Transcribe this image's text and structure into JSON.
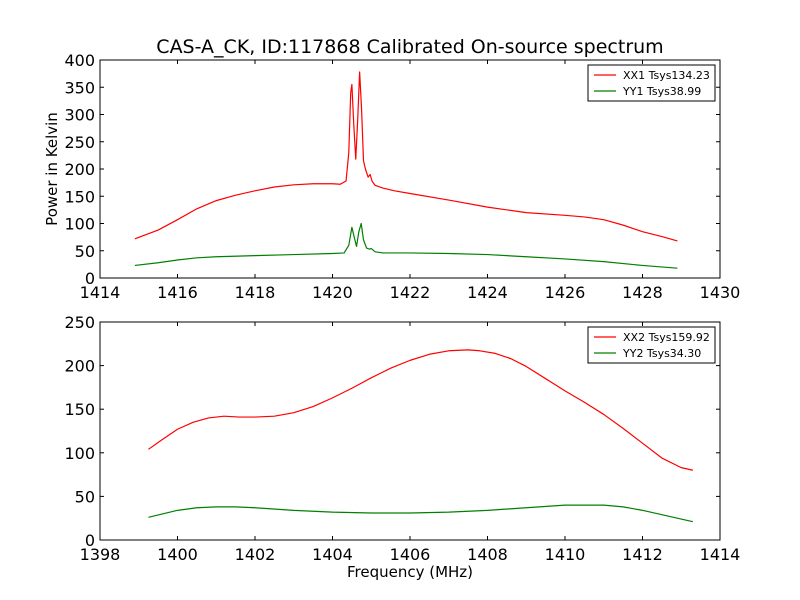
{
  "title": "CAS-A_CK, ID:117868 Calibrated On-source spectrum",
  "chart_data": [
    {
      "type": "line",
      "title": "CAS-A_CK, ID:117868 Calibrated On-source spectrum",
      "xlabel": "",
      "ylabel": "Power in Kelvin",
      "xlim": [
        1414,
        1430
      ],
      "ylim": [
        0,
        400
      ],
      "xticks": [
        1414,
        1416,
        1418,
        1420,
        1422,
        1424,
        1426,
        1428,
        1430
      ],
      "yticks": [
        0,
        50,
        100,
        150,
        200,
        250,
        300,
        350,
        400
      ],
      "grid": false,
      "legend_position": "top-right",
      "series": [
        {
          "name": "XX1 Tsys134.23",
          "color": "#ff0000",
          "x": [
            1414.9,
            1415.5,
            1416.0,
            1416.5,
            1417.0,
            1417.5,
            1418.0,
            1418.5,
            1419.0,
            1419.5,
            1420.0,
            1420.2,
            1420.35,
            1420.42,
            1420.47,
            1420.5,
            1420.55,
            1420.6,
            1420.65,
            1420.7,
            1420.75,
            1420.8,
            1420.85,
            1420.92,
            1420.97,
            1421.02,
            1421.1,
            1421.3,
            1421.6,
            1422.0,
            1423.0,
            1424.0,
            1425.0,
            1426.0,
            1426.5,
            1427.0,
            1427.5,
            1428.0,
            1428.5,
            1428.9
          ],
          "y": [
            72,
            88,
            107,
            127,
            142,
            152,
            160,
            167,
            171,
            173,
            173,
            172,
            178,
            230,
            340,
            355,
            280,
            218,
            290,
            378,
            310,
            215,
            200,
            185,
            190,
            178,
            170,
            165,
            160,
            155,
            143,
            130,
            120,
            115,
            112,
            107,
            97,
            85,
            76,
            68
          ]
        },
        {
          "name": "YY1 Tsys38.99",
          "color": "#008000",
          "x": [
            1414.9,
            1415.5,
            1416.0,
            1416.5,
            1417.0,
            1418.0,
            1419.0,
            1420.0,
            1420.3,
            1420.42,
            1420.5,
            1420.56,
            1420.62,
            1420.68,
            1420.74,
            1420.8,
            1420.88,
            1420.95,
            1421.0,
            1421.1,
            1421.3,
            1422.0,
            1423.0,
            1424.0,
            1425.0,
            1426.0,
            1427.0,
            1428.0,
            1428.9
          ],
          "y": [
            23,
            28,
            33,
            37,
            39,
            41,
            43,
            45,
            46,
            60,
            93,
            75,
            58,
            85,
            100,
            70,
            55,
            53,
            54,
            48,
            46,
            46,
            45,
            43,
            39,
            35,
            30,
            23,
            18
          ]
        }
      ]
    },
    {
      "type": "line",
      "title": "",
      "xlabel": "Frequency (MHz)",
      "ylabel": "",
      "xlim": [
        1398,
        1414
      ],
      "ylim": [
        0,
        250
      ],
      "xticks": [
        1398,
        1400,
        1402,
        1404,
        1406,
        1408,
        1410,
        1412,
        1414
      ],
      "yticks": [
        0,
        50,
        100,
        150,
        200,
        250
      ],
      "grid": false,
      "legend_position": "top-right",
      "series": [
        {
          "name": "XX2 Tsys159.92",
          "color": "#ff0000",
          "x": [
            1399.25,
            1399.6,
            1400.0,
            1400.4,
            1400.8,
            1401.2,
            1401.6,
            1402.0,
            1402.5,
            1403.0,
            1403.5,
            1404.0,
            1404.5,
            1405.0,
            1405.5,
            1406.0,
            1406.5,
            1407.0,
            1407.5,
            1407.8,
            1408.2,
            1408.6,
            1409.0,
            1409.5,
            1410.0,
            1410.5,
            1411.0,
            1411.5,
            1412.0,
            1412.5,
            1413.0,
            1413.3
          ],
          "y": [
            104,
            115,
            127,
            135,
            140,
            142,
            141,
            141,
            142,
            146,
            153,
            163,
            174,
            186,
            197,
            206,
            213,
            217,
            218,
            217,
            214,
            208,
            199,
            185,
            171,
            158,
            144,
            128,
            111,
            94,
            83,
            80
          ]
        },
        {
          "name": "YY2 Tsys34.30",
          "color": "#008000",
          "x": [
            1399.25,
            1400.0,
            1400.5,
            1401.0,
            1401.5,
            1402.0,
            1403.0,
            1404.0,
            1405.0,
            1406.0,
            1407.0,
            1408.0,
            1409.0,
            1410.0,
            1410.5,
            1411.0,
            1411.5,
            1412.0,
            1412.5,
            1413.0,
            1413.3
          ],
          "y": [
            26,
            34,
            37,
            38,
            38,
            37,
            34,
            32,
            31,
            31,
            32,
            34,
            37,
            40,
            40,
            40,
            38,
            34,
            29,
            24,
            21
          ]
        }
      ]
    }
  ]
}
